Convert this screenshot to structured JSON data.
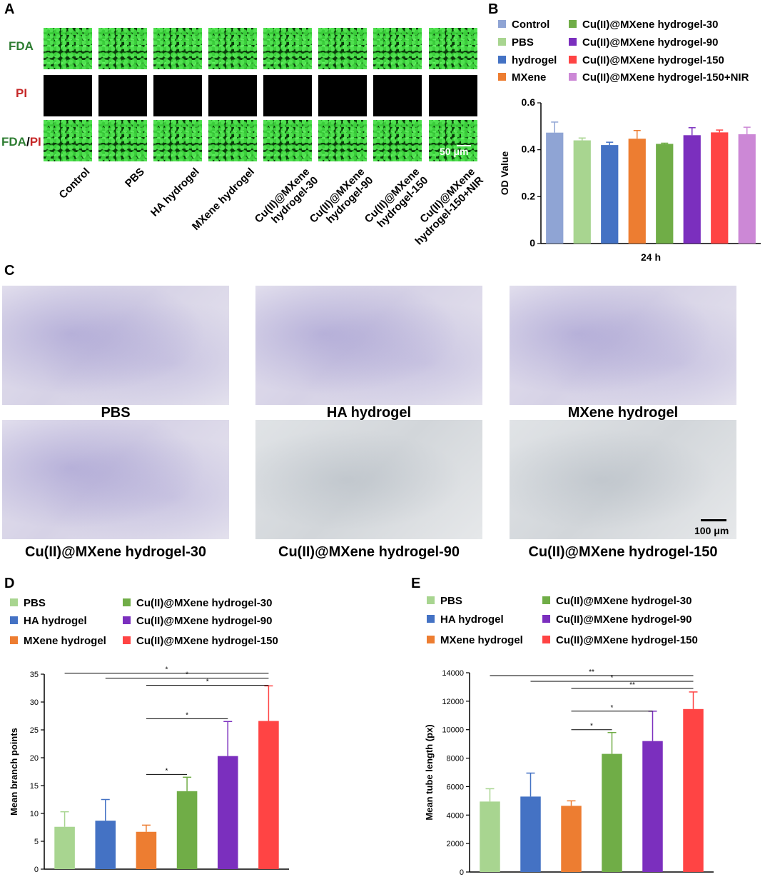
{
  "panels": {
    "a": "A",
    "b": "B",
    "c": "C",
    "d": "D",
    "e": "E"
  },
  "panel_a": {
    "row_labels": [
      "FDA",
      "PI"
    ],
    "merged_label": {
      "part1": "FDA",
      "sep": "/",
      "part2": "PI"
    },
    "scale_bar": "50 μm",
    "groups": [
      "Control",
      "PBS",
      "HA hydrogel",
      "MXene hydrogel",
      "Cu(II)@MXene\nhydrogel-30",
      "Cu(II)@MXene\nhydrogel-90",
      "Cu(II)@MXene\nhydrogel-150",
      "Cu(II)@MXene\nhydrogel-150+NIR"
    ]
  },
  "panel_c": {
    "captions": [
      "PBS",
      "HA hydrogel",
      "MXene hydrogel",
      "Cu(II)@MXene hydrogel-30",
      "Cu(II)@MXene hydrogel-90",
      "Cu(II)@MXene hydrogel-150"
    ],
    "scale_bar": "100 μm"
  },
  "colors": {
    "control": "#8fa4d4",
    "pbs": "#a8d590",
    "hydrogel": "#4472c4",
    "mxene": "#ed7d31",
    "cu30": "#70ad47",
    "cu90": "#7b2fbe",
    "cu150": "#ff4444",
    "cu150nir": "#cc88d6"
  },
  "chart_data": [
    {
      "type": "bar",
      "panel": "B",
      "categories": [
        "Control",
        "PBS",
        "hydrogel",
        "MXene",
        "Cu(II)@MXene hydrogel-30",
        "Cu(II)@MXene hydrogel-90",
        "Cu(II)@MXene hydrogel-150",
        "Cu(II)@MXene hydrogel-150+NIR"
      ],
      "values": [
        0.473,
        0.44,
        0.42,
        0.447,
        0.425,
        0.462,
        0.474,
        0.466
      ],
      "errors": [
        0.045,
        0.01,
        0.012,
        0.035,
        0.003,
        0.032,
        0.01,
        0.03
      ],
      "colors": [
        "#8fa4d4",
        "#a8d590",
        "#4472c4",
        "#ed7d31",
        "#70ad47",
        "#7b2fbe",
        "#ff4444",
        "#cc88d6"
      ],
      "xlabel": "24 h",
      "ylabel": "OD Value",
      "ylim": [
        0,
        0.6
      ],
      "yticks": [
        "0",
        "0.2",
        "0.4",
        "0.6"
      ],
      "legend_position": "top"
    },
    {
      "type": "bar",
      "panel": "D",
      "categories": [
        "PBS",
        "HA hydrogel",
        "MXene hydrogel",
        "Cu(II)@MXene hydrogel-30",
        "Cu(II)@MXene hydrogel-90",
        "Cu(II)@MXene hydrogel-150"
      ],
      "values": [
        7.6,
        8.7,
        6.7,
        14.0,
        20.3,
        26.6
      ],
      "errors": [
        2.7,
        3.8,
        1.2,
        2.5,
        6.2,
        6.3
      ],
      "colors": [
        "#a8d590",
        "#4472c4",
        "#ed7d31",
        "#70ad47",
        "#7b2fbe",
        "#ff4444"
      ],
      "ylabel": "Mean branch points",
      "ylim": [
        0,
        35
      ],
      "yticks": [
        "0",
        "5",
        "10",
        "15",
        "20",
        "25",
        "30",
        "35"
      ],
      "significance": [
        {
          "from": 0,
          "to": 5,
          "label": "*",
          "level": 35.2
        },
        {
          "from": 1,
          "to": 5,
          "label": "*",
          "level": 34.3
        },
        {
          "from": 2,
          "to": 5,
          "label": "*",
          "level": 33.0
        },
        {
          "from": 2,
          "to": 4,
          "label": "*",
          "level": 27.0
        },
        {
          "from": 2,
          "to": 3,
          "label": "*",
          "level": 17.0
        }
      ],
      "legend_position": "top"
    },
    {
      "type": "bar",
      "panel": "E",
      "categories": [
        "PBS",
        "HA hydrogel",
        "MXene hydrogel",
        "Cu(II)@MXene hydrogel-30",
        "Cu(II)@MXene hydrogel-90",
        "Cu(II)@MXene hydrogel-150"
      ],
      "values": [
        4950,
        5300,
        4650,
        8300,
        9200,
        11450
      ],
      "errors": [
        900,
        1650,
        350,
        1500,
        2100,
        1200
      ],
      "colors": [
        "#a8d590",
        "#4472c4",
        "#ed7d31",
        "#70ad47",
        "#7b2fbe",
        "#ff4444"
      ],
      "ylabel": "Mean tube length (px)",
      "ylim": [
        0,
        14000
      ],
      "yticks": [
        "0",
        "2000",
        "4000",
        "6000",
        "8000",
        "10000",
        "12000",
        "14000"
      ],
      "significance": [
        {
          "from": 0,
          "to": 5,
          "label": "**",
          "level": 13800
        },
        {
          "from": 1,
          "to": 5,
          "label": "*",
          "level": 13400
        },
        {
          "from": 2,
          "to": 5,
          "label": "**",
          "level": 12900
        },
        {
          "from": 2,
          "to": 4,
          "label": "*",
          "level": 11300
        },
        {
          "from": 2,
          "to": 3,
          "label": "*",
          "level": 10000
        }
      ],
      "legend_position": "top"
    }
  ]
}
